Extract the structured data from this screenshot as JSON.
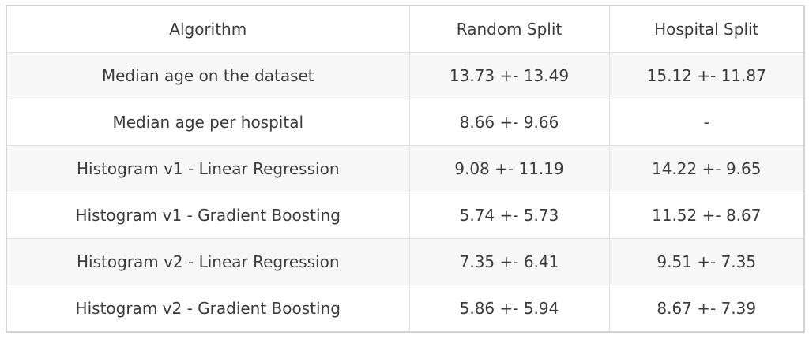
{
  "table": {
    "columns": [
      {
        "key": "algorithm",
        "label": "Algorithm"
      },
      {
        "key": "random_split",
        "label": "Random Split"
      },
      {
        "key": "hospital_split",
        "label": "Hospital Split"
      }
    ],
    "rows": [
      {
        "algorithm": "Median age on the dataset",
        "random_split": "13.73 +- 13.49",
        "hospital_split": "15.12 +- 11.87"
      },
      {
        "algorithm": "Median age per hospital",
        "random_split": "8.66 +- 9.66",
        "hospital_split": "-"
      },
      {
        "algorithm": "Histogram v1 - Linear Regression",
        "random_split": "9.08 +- 11.19",
        "hospital_split": "14.22 +- 9.65"
      },
      {
        "algorithm": "Histogram v1 - Gradient Boosting",
        "random_split": "5.74 +- 5.73",
        "hospital_split": "11.52 +- 8.67"
      },
      {
        "algorithm": "Histogram v2 - Linear Regression",
        "random_split": "7.35 +- 6.41",
        "hospital_split": "9.51 +- 7.35"
      },
      {
        "algorithm": "Histogram v2 - Gradient Boosting",
        "random_split": "5.86 +- 5.94",
        "hospital_split": "8.67 +- 7.39"
      }
    ],
    "colors": {
      "stripe_bg": "#f7f7f7",
      "row_bg": "#ffffff",
      "header_bg": "#ffffff",
      "inner_border": "#e1e1e1",
      "outer_border": "#d4d4d4",
      "text": "#3b3b3b"
    }
  }
}
